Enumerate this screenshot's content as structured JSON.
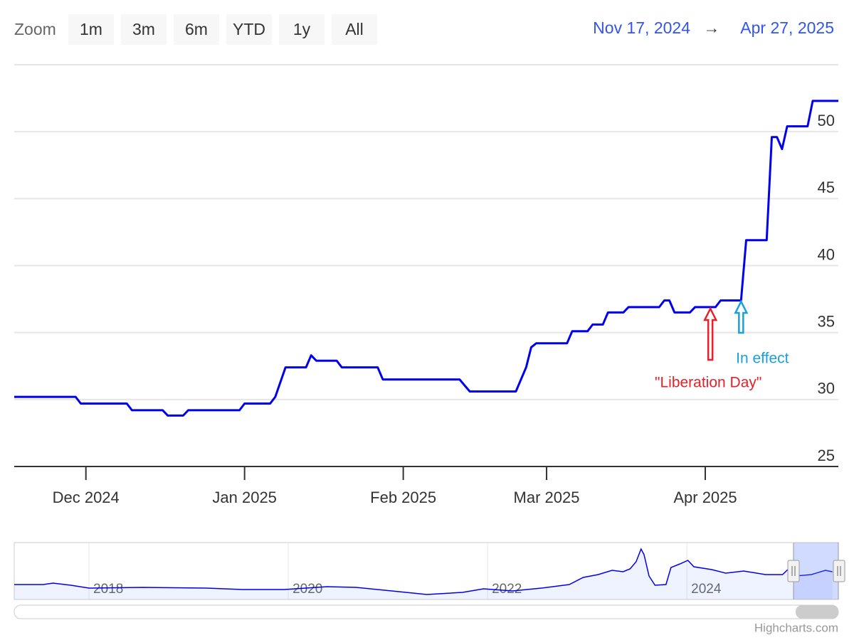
{
  "range_selector": {
    "zoom_label": "Zoom",
    "buttons": [
      "1m",
      "3m",
      "6m",
      "YTD",
      "1y",
      "All"
    ],
    "from": "Nov 17, 2024",
    "separator": "→",
    "to": "Apr 27, 2025"
  },
  "credit": "Highcharts.com",
  "chart_data": [
    {
      "type": "line",
      "x": [
        "2024-11-17",
        "2024-11-29",
        "2024-11-30",
        "2024-12-09",
        "2024-12-10",
        "2024-12-16",
        "2024-12-17",
        "2024-12-20",
        "2024-12-21",
        "2024-12-31",
        "2025-01-01",
        "2025-01-06",
        "2025-01-07",
        "2025-01-09",
        "2025-01-13",
        "2025-01-14",
        "2025-01-15",
        "2025-01-19",
        "2025-01-20",
        "2025-01-27",
        "2025-01-28",
        "2025-02-12",
        "2025-02-14",
        "2025-02-23",
        "2025-02-25",
        "2025-02-26",
        "2025-02-27",
        "2025-03-05",
        "2025-03-06",
        "2025-03-09",
        "2025-03-10",
        "2025-03-12",
        "2025-03-13",
        "2025-03-16",
        "2025-03-17",
        "2025-03-23",
        "2025-03-24",
        "2025-03-25",
        "2025-03-26",
        "2025-03-29",
        "2025-03-30",
        "2025-04-03",
        "2025-04-04",
        "2025-04-08",
        "2025-04-09",
        "2025-04-13",
        "2025-04-14",
        "2025-04-15",
        "2025-04-16",
        "2025-04-17",
        "2025-04-21",
        "2025-04-22",
        "2025-04-27"
      ],
      "series": [
        {
          "color": "#0000ee",
          "values": [
            30.2,
            30.2,
            29.7,
            29.7,
            29.2,
            29.2,
            28.8,
            28.8,
            29.2,
            29.2,
            29.7,
            29.7,
            30.2,
            32.4,
            32.4,
            33.3,
            32.9,
            32.9,
            32.4,
            32.4,
            31.5,
            31.5,
            30.6,
            30.6,
            32.4,
            33.9,
            34.2,
            34.2,
            35.1,
            35.1,
            35.6,
            35.6,
            36.5,
            36.5,
            36.9,
            36.9,
            37.4,
            37.4,
            36.5,
            36.5,
            36.9,
            36.9,
            37.4,
            37.4,
            41.9,
            41.9,
            49.6,
            49.6,
            48.7,
            50.4,
            50.4,
            52.3,
            52.3
          ]
        }
      ],
      "xlim": [
        "2024-11-17",
        "2025-04-27"
      ],
      "xticks": [
        {
          "value": "2024-12-01",
          "label": "Dec 2024"
        },
        {
          "value": "2025-01-01",
          "label": "Jan 2025"
        },
        {
          "value": "2025-02-01",
          "label": "Feb 2025"
        },
        {
          "value": "2025-03-01",
          "label": "Mar 2025"
        },
        {
          "value": "2025-04-01",
          "label": "Apr 2025"
        }
      ],
      "ylim": [
        25,
        55
      ],
      "yticks": [
        25,
        30,
        35,
        40,
        45,
        50
      ],
      "grid": true,
      "annotations": [
        {
          "text": "\"Liberation Day\"",
          "x": "2025-04-02",
          "color": "#e8202a"
        },
        {
          "text": "In effect",
          "x": "2025-04-08",
          "color": "#19a0df"
        }
      ]
    },
    {
      "type": "area",
      "x": [
        2017.25,
        2017.54,
        2017.64,
        2017.82,
        2018,
        2018.54,
        2019.18,
        2019.54,
        2019.96,
        2020.39,
        2020.68,
        2021.11,
        2021.39,
        2021.75,
        2021.96,
        2022.25,
        2022.54,
        2022.82,
        2022.96,
        2023.11,
        2023.25,
        2023.36,
        2023.43,
        2023.49,
        2023.54,
        2023.57,
        2023.62,
        2023.68,
        2023.79,
        2023.84,
        2023.93,
        2024.01,
        2024.07,
        2024.25,
        2024.39,
        2024.57,
        2024.79,
        2024.96,
        2025.02,
        2025.09,
        2025.25,
        2025.39,
        2025.46
      ],
      "series": [
        {
          "color": "#0000ee",
          "values": [
            21,
            21,
            23,
            20,
            16,
            17,
            16,
            14,
            14,
            18,
            17,
            11,
            7,
            10,
            15,
            12,
            16,
            21,
            31,
            35,
            41,
            39,
            43,
            53,
            71,
            63,
            33,
            20,
            21,
            45,
            50,
            55,
            46,
            42,
            37,
            40,
            35,
            35,
            43,
            33,
            35,
            41,
            39
          ]
        }
      ],
      "xlim": [
        2017.25,
        2025.52
      ],
      "xticks": [
        2018,
        2020,
        2022,
        2024
      ],
      "ylim": [
        0,
        80
      ]
    }
  ]
}
